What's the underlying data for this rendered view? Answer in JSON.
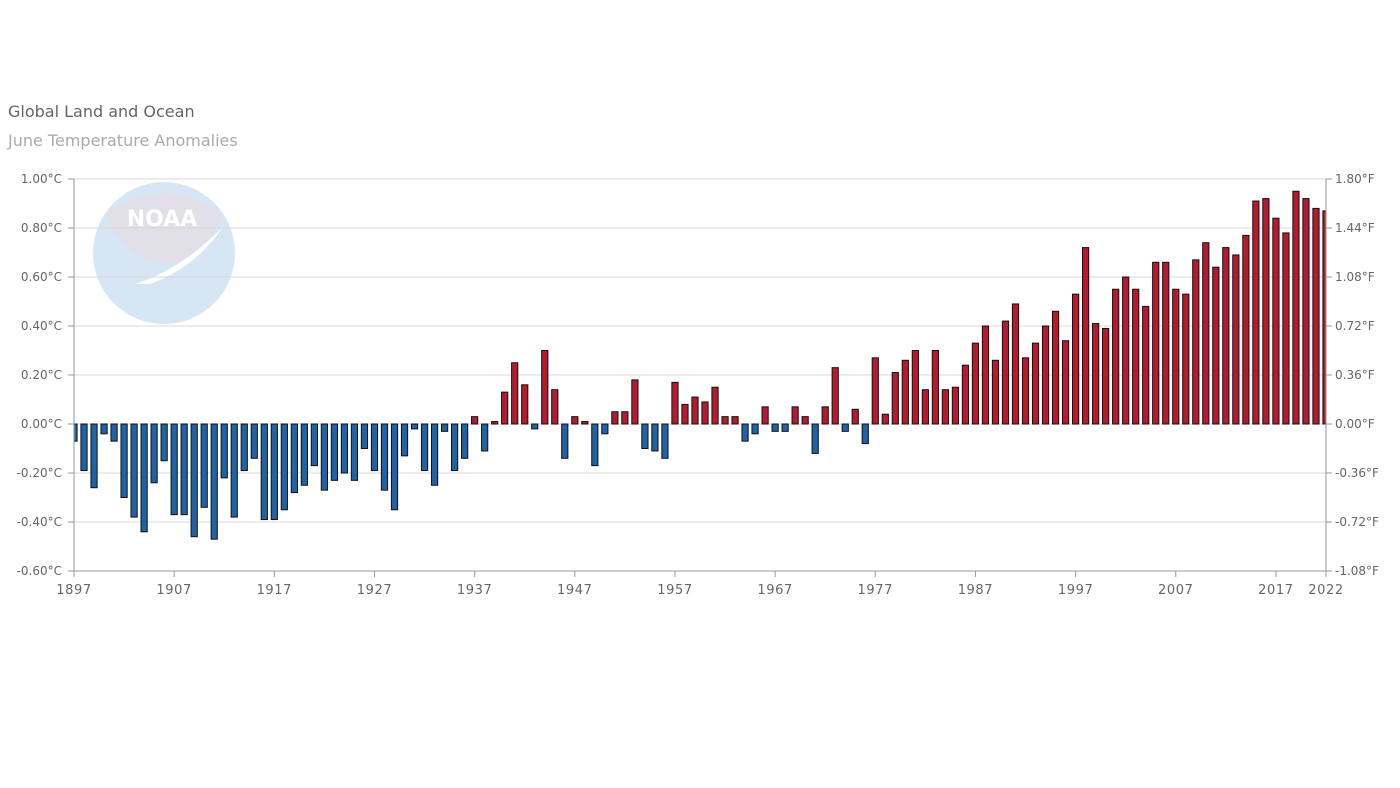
{
  "chart_data": {
    "type": "bar",
    "title": "Global Land and Ocean",
    "subtitle": "June Temperature Anomalies",
    "x_start": 1897,
    "x_end": 2022,
    "x_tick_labels": [
      "1897",
      "1907",
      "1917",
      "1927",
      "1937",
      "1947",
      "1957",
      "1967",
      "1977",
      "1987",
      "1997",
      "2007",
      "2017",
      "2022"
    ],
    "y_left_ticks": [
      "1.00°C",
      "0.80°C",
      "0.60°C",
      "0.40°C",
      "0.20°C",
      "0.00°C",
      "-0.20°C",
      "-0.40°C",
      "-0.60°C"
    ],
    "y_right_ticks": [
      "1.80°F",
      "1.44°F",
      "1.08°F",
      "0.72°F",
      "0.36°F",
      "0.00°F",
      "-0.36°F",
      "-0.72°F",
      "-1.08°F"
    ],
    "ylim": [
      -0.6,
      1.0
    ],
    "grid": true,
    "colors": {
      "positive": "#b31b2f",
      "negative": "#1f63a6",
      "bar_edge": "#111111",
      "grid": "#d8d8d8",
      "axis": "#999999"
    },
    "watermark": "NOAA",
    "values": [
      -0.07,
      -0.19,
      -0.26,
      -0.04,
      -0.07,
      -0.3,
      -0.38,
      -0.44,
      -0.24,
      -0.15,
      -0.37,
      -0.37,
      -0.46,
      -0.34,
      -0.47,
      -0.22,
      -0.38,
      -0.19,
      -0.14,
      -0.39,
      -0.39,
      -0.35,
      -0.28,
      -0.25,
      -0.17,
      -0.27,
      -0.23,
      -0.2,
      -0.23,
      -0.1,
      -0.19,
      -0.27,
      -0.35,
      -0.13,
      -0.02,
      -0.19,
      -0.25,
      -0.03,
      -0.19,
      -0.14,
      0.03,
      -0.11,
      0.01,
      0.13,
      0.25,
      0.16,
      -0.02,
      0.3,
      0.14,
      -0.14,
      0.03,
      0.01,
      -0.17,
      -0.04,
      0.05,
      0.05,
      0.18,
      -0.1,
      -0.11,
      -0.14,
      0.17,
      0.08,
      0.11,
      0.09,
      0.15,
      0.03,
      0.03,
      -0.07,
      -0.04,
      0.07,
      -0.03,
      -0.03,
      0.07,
      0.03,
      -0.12,
      0.07,
      0.23,
      -0.03,
      0.06,
      -0.08,
      0.27,
      0.04,
      0.21,
      0.26,
      0.3,
      0.14,
      0.3,
      0.14,
      0.15,
      0.24,
      0.33,
      0.4,
      0.26,
      0.42,
      0.49,
      0.27,
      0.33,
      0.4,
      0.46,
      0.34,
      0.53,
      0.72,
      0.41,
      0.39,
      0.55,
      0.6,
      0.55,
      0.48,
      0.66,
      0.66,
      0.55,
      0.53,
      0.67,
      0.74,
      0.64,
      0.72,
      0.69,
      0.77,
      0.91,
      0.92,
      0.84,
      0.78,
      0.95,
      0.92,
      0.88,
      0.87
    ]
  }
}
